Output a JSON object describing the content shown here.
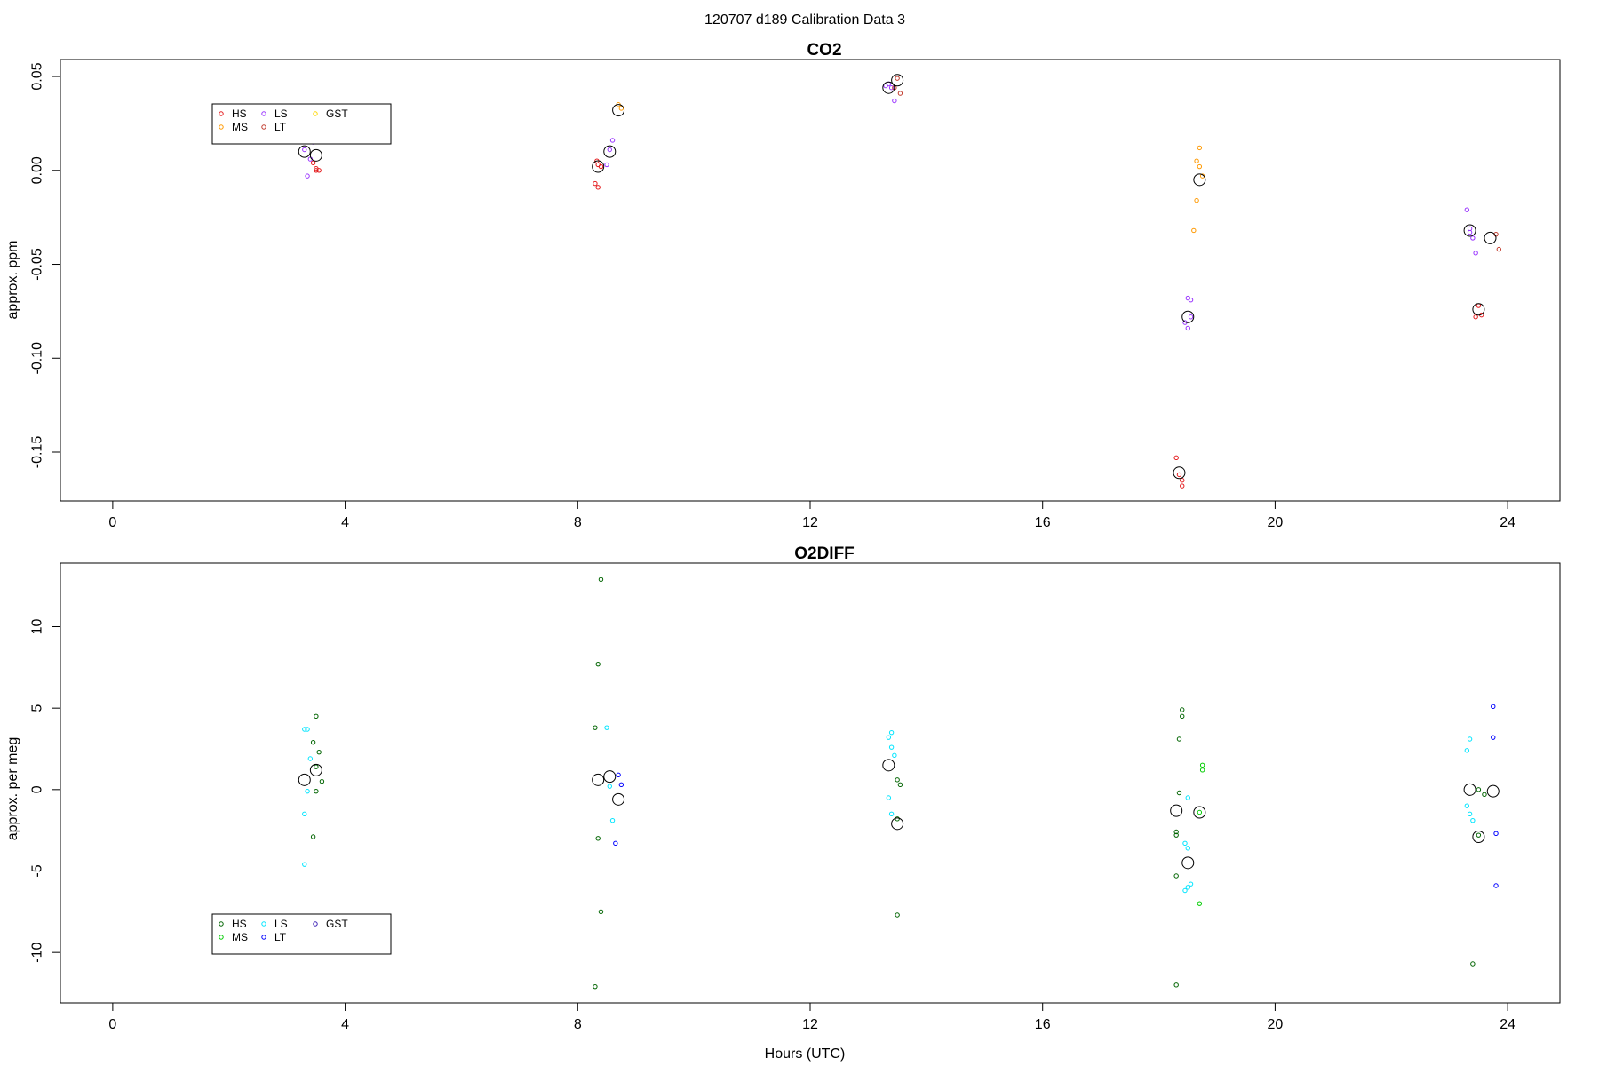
{
  "suptitle": "120707   d189   Calibration Data 3",
  "chart_data": [
    {
      "type": "scatter",
      "title": "CO2",
      "xlabel": "",
      "ylabel": "approx. ppm",
      "xlim": [
        -0.9,
        24.9
      ],
      "ylim": [
        -0.176,
        0.059
      ],
      "xticks": [
        0,
        4,
        8,
        12,
        16,
        20,
        24
      ],
      "yticks": [
        0.05,
        0.0,
        -0.05,
        -0.1,
        -0.15
      ],
      "ytick_labels": [
        "0.05",
        "0.00",
        "-0.05",
        "-0.10",
        "-0.15"
      ],
      "legend": {
        "placement": "top-left",
        "entries": [
          {
            "label": "HS",
            "color": "#e41a1c"
          },
          {
            "label": "MS",
            "color": "#ff9900"
          },
          {
            "label": "LS",
            "color": "#9933ff"
          },
          {
            "label": "LT",
            "color": "#c0392b"
          },
          {
            "label": "GST",
            "color": "#ffd700"
          }
        ]
      },
      "series": [
        {
          "name": "HS",
          "color": "#e41a1c",
          "points": [
            [
              3.5,
              0.001
            ],
            [
              3.5,
              0.0
            ],
            [
              3.45,
              0.004
            ],
            [
              3.55,
              0.0
            ],
            [
              8.35,
              0.003
            ],
            [
              8.33,
              0.005
            ],
            [
              8.3,
              -0.007
            ],
            [
              8.35,
              -0.009
            ],
            [
              8.4,
              0.002
            ],
            [
              18.3,
              -0.153
            ],
            [
              18.35,
              -0.162
            ],
            [
              18.4,
              -0.165
            ],
            [
              18.4,
              -0.168
            ],
            [
              23.5,
              -0.072
            ],
            [
              23.55,
              -0.077
            ],
            [
              23.45,
              -0.078
            ]
          ]
        },
        {
          "name": "MS",
          "color": "#ff9900",
          "points": [
            [
              8.7,
              0.035
            ],
            [
              8.75,
              0.033
            ],
            [
              18.7,
              0.012
            ],
            [
              18.65,
              0.005
            ],
            [
              18.7,
              0.002
            ],
            [
              18.65,
              -0.016
            ],
            [
              18.6,
              -0.032
            ],
            [
              18.75,
              -0.003
            ]
          ]
        },
        {
          "name": "LS",
          "color": "#9933ff",
          "points": [
            [
              3.3,
              0.011
            ],
            [
              3.35,
              -0.003
            ],
            [
              3.4,
              0.006
            ],
            [
              3.45,
              0.015
            ],
            [
              8.55,
              0.011
            ],
            [
              8.6,
              0.016
            ],
            [
              8.5,
              0.003
            ],
            [
              13.35,
              0.046
            ],
            [
              13.4,
              0.044
            ],
            [
              13.45,
              0.037
            ],
            [
              13.3,
              0.045
            ],
            [
              18.5,
              -0.068
            ],
            [
              18.55,
              -0.069
            ],
            [
              18.45,
              -0.081
            ],
            [
              18.5,
              -0.084
            ],
            [
              18.55,
              -0.078
            ],
            [
              23.3,
              -0.021
            ],
            [
              23.35,
              -0.031
            ],
            [
              23.4,
              -0.036
            ],
            [
              23.45,
              -0.044
            ],
            [
              23.35,
              -0.033
            ]
          ]
        },
        {
          "name": "LT",
          "color": "#c0392b",
          "points": [
            [
              13.5,
              0.049
            ],
            [
              13.55,
              0.041
            ],
            [
              13.45,
              0.044
            ],
            [
              23.8,
              -0.034
            ],
            [
              23.85,
              -0.042
            ]
          ]
        },
        {
          "name": "GST",
          "color": "#ffd700",
          "points": []
        },
        {
          "name": "mean",
          "color": "#000000",
          "large": true,
          "points": [
            [
              3.3,
              0.01
            ],
            [
              3.5,
              0.008
            ],
            [
              8.35,
              0.002
            ],
            [
              8.55,
              0.01
            ],
            [
              8.7,
              0.032
            ],
            [
              13.35,
              0.044
            ],
            [
              13.5,
              0.048
            ],
            [
              18.35,
              -0.161
            ],
            [
              18.5,
              -0.078
            ],
            [
              18.7,
              -0.005
            ],
            [
              23.35,
              -0.032
            ],
            [
              23.5,
              -0.074
            ],
            [
              23.7,
              -0.036
            ]
          ]
        }
      ]
    },
    {
      "type": "scatter",
      "title": "O2DIFF",
      "xlabel": "Hours (UTC)",
      "ylabel": "approx. per meg",
      "xlim": [
        -0.9,
        24.9
      ],
      "ylim": [
        -13.1,
        13.9
      ],
      "xticks": [
        0,
        4,
        8,
        12,
        16,
        20,
        24
      ],
      "yticks": [
        10,
        5,
        0,
        -5,
        -10
      ],
      "ytick_labels": [
        "10",
        "5",
        "0",
        "-5",
        "-10"
      ],
      "legend": {
        "placement": "bottom-left",
        "entries": [
          {
            "label": "HS",
            "color": "#006400"
          },
          {
            "label": "MS",
            "color": "#00cc00"
          },
          {
            "label": "LS",
            "color": "#00e5ff"
          },
          {
            "label": "LT",
            "color": "#0000ff"
          },
          {
            "label": "GST",
            "color": "#3a1fb5"
          }
        ]
      },
      "series": [
        {
          "name": "HS",
          "color": "#006400",
          "points": [
            [
              3.5,
              4.5
            ],
            [
              3.45,
              2.9
            ],
            [
              3.55,
              2.3
            ],
            [
              3.5,
              1.4
            ],
            [
              3.6,
              0.5
            ],
            [
              3.5,
              -0.1
            ],
            [
              3.45,
              -2.9
            ],
            [
              8.4,
              12.9
            ],
            [
              8.35,
              7.7
            ],
            [
              8.3,
              3.8
            ],
            [
              8.35,
              -3.0
            ],
            [
              8.4,
              -7.5
            ],
            [
              8.3,
              -12.1
            ],
            [
              13.5,
              0.6
            ],
            [
              13.55,
              0.3
            ],
            [
              13.5,
              -1.8
            ],
            [
              13.5,
              -7.7
            ],
            [
              18.4,
              4.9
            ],
            [
              18.4,
              4.5
            ],
            [
              18.35,
              3.1
            ],
            [
              18.35,
              -0.2
            ],
            [
              18.3,
              -2.6
            ],
            [
              18.3,
              -2.8
            ],
            [
              18.3,
              -5.3
            ],
            [
              18.3,
              -12.0
            ],
            [
              23.5,
              0.0
            ],
            [
              23.6,
              -0.3
            ],
            [
              23.5,
              -2.8
            ],
            [
              23.4,
              -10.7
            ]
          ]
        },
        {
          "name": "MS",
          "color": "#00cc00",
          "points": [
            [
              18.75,
              1.5
            ],
            [
              18.75,
              1.2
            ],
            [
              18.7,
              -1.4
            ],
            [
              18.7,
              -7.0
            ]
          ]
        },
        {
          "name": "LS",
          "color": "#00e5ff",
          "points": [
            [
              3.3,
              3.7
            ],
            [
              3.35,
              3.7
            ],
            [
              3.4,
              1.9
            ],
            [
              3.35,
              -0.1
            ],
            [
              3.3,
              -1.5
            ],
            [
              3.3,
              -4.6
            ],
            [
              8.5,
              3.8
            ],
            [
              8.55,
              0.2
            ],
            [
              8.6,
              -1.9
            ],
            [
              13.4,
              3.5
            ],
            [
              13.35,
              3.2
            ],
            [
              13.4,
              2.6
            ],
            [
              13.45,
              2.1
            ],
            [
              13.35,
              -0.5
            ],
            [
              13.4,
              -1.5
            ],
            [
              18.5,
              -0.5
            ],
            [
              18.45,
              -3.3
            ],
            [
              18.5,
              -3.6
            ],
            [
              18.55,
              -5.8
            ],
            [
              18.5,
              -6.0
            ],
            [
              18.45,
              -6.2
            ],
            [
              23.35,
              3.1
            ],
            [
              23.3,
              2.4
            ],
            [
              23.3,
              -1.0
            ],
            [
              23.35,
              -1.5
            ],
            [
              23.4,
              -1.9
            ]
          ]
        },
        {
          "name": "LT",
          "color": "#0000ff",
          "points": [
            [
              8.7,
              0.9
            ],
            [
              8.75,
              0.3
            ],
            [
              8.65,
              -3.3
            ],
            [
              23.75,
              5.1
            ],
            [
              23.75,
              3.2
            ],
            [
              23.8,
              -2.7
            ],
            [
              23.8,
              -5.9
            ]
          ]
        },
        {
          "name": "GST",
          "color": "#3a1fb5",
          "points": []
        },
        {
          "name": "mean",
          "color": "#000000",
          "large": true,
          "points": [
            [
              3.3,
              0.6
            ],
            [
              3.5,
              1.2
            ],
            [
              8.35,
              0.6
            ],
            [
              8.55,
              0.8
            ],
            [
              8.7,
              -0.6
            ],
            [
              13.35,
              1.5
            ],
            [
              13.5,
              -2.1
            ],
            [
              18.3,
              -1.3
            ],
            [
              18.5,
              -4.5
            ],
            [
              18.7,
              -1.4
            ],
            [
              23.35,
              0.0
            ],
            [
              23.5,
              -2.9
            ],
            [
              23.75,
              -0.1
            ]
          ]
        }
      ]
    }
  ]
}
